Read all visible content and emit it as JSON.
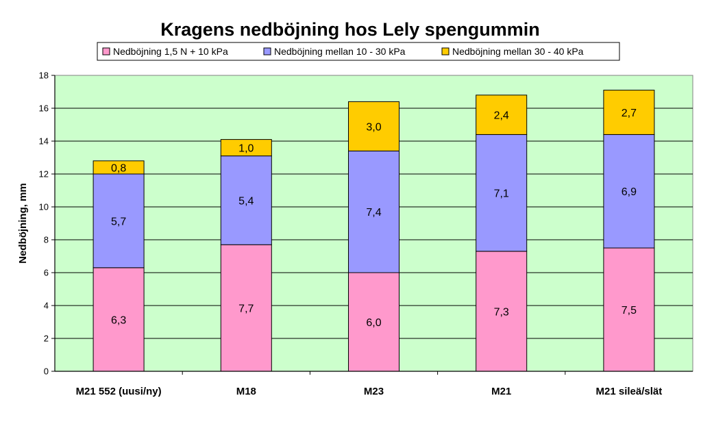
{
  "chart_data": {
    "type": "bar",
    "stacked": true,
    "title": "Kragens nedböjning hos Lely spengummin",
    "xlabel": "",
    "ylabel": "Nedböjning, mm",
    "ylim": [
      0,
      18
    ],
    "ytick_step": 2,
    "grid": true,
    "legend": "top",
    "plot_background": "#ccffcc",
    "categories": [
      "M21 552 (uusi/ny)",
      "M18",
      "M23",
      "M21",
      "M21 sileä/slät"
    ],
    "series": [
      {
        "name": "Nedböjning 1,5 N + 10 kPa",
        "color": "#ff99cc",
        "values": [
          6.3,
          7.7,
          6.0,
          7.3,
          7.5
        ],
        "labels": [
          "6,3",
          "7,7",
          "6,0",
          "7,3",
          "7,5"
        ]
      },
      {
        "name": "Nedböjning mellan 10 - 30 kPa",
        "color": "#9999ff",
        "values": [
          5.7,
          5.4,
          7.4,
          7.1,
          6.9
        ],
        "labels": [
          "5,7",
          "5,4",
          "7,4",
          "7,1",
          "6,9"
        ]
      },
      {
        "name": "Nedböjning mellan 30 - 40 kPa",
        "color": "#ffcc00",
        "values": [
          0.8,
          1.0,
          3.0,
          2.4,
          2.7
        ],
        "labels": [
          "0,8",
          "1,0",
          "3,0",
          "2,4",
          "2,7"
        ]
      }
    ]
  }
}
